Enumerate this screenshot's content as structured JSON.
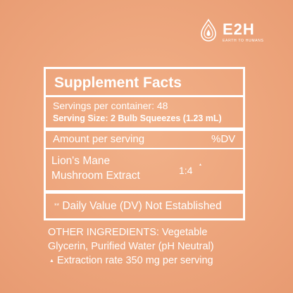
{
  "brand": {
    "wordmark": "E2H",
    "tagline": "EARTH TO HUMANS",
    "icon": "oil-drop-icon"
  },
  "facts": {
    "title": "Supplement Facts",
    "servings_per_container": "Servings per container: 48",
    "serving_size": "Serving Size: 2 Bulb Squeezes (1.23 mL)",
    "amount_header": "Amount per serving",
    "dv_header": "%DV",
    "ingredient_line1": "Lion's Mane",
    "ingredient_line2": "Mushroom Extract",
    "ratio": "1:4",
    "ratio_mark": "▲",
    "dv_note_mark": "**",
    "dv_note": "Daily Value (DV) Not Established"
  },
  "other_ingredients": {
    "line1": "OTHER INGREDIENTS: Vegetable",
    "line2": "Glycerin, Purified Water (pH Neutral)"
  },
  "footnote": {
    "mark": "▲",
    "text": "Extraction rate 350 mg per serving"
  },
  "colors": {
    "background": "#eda57c",
    "foreground": "#ffffff"
  }
}
